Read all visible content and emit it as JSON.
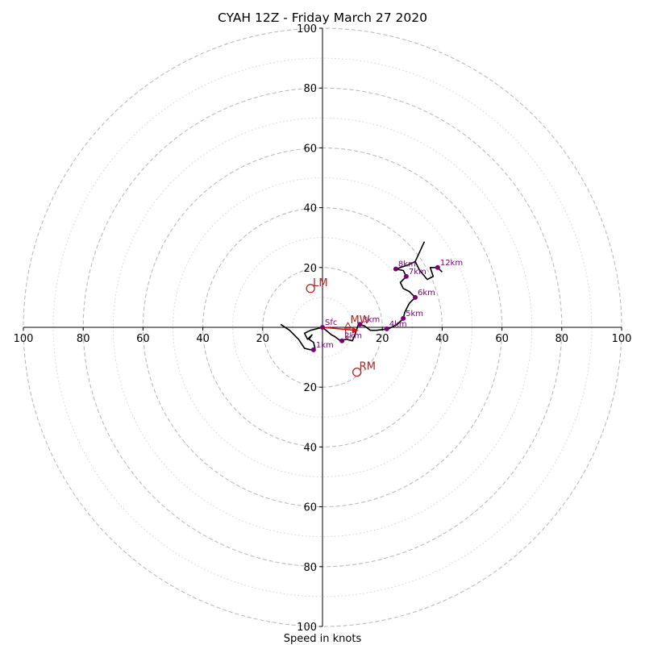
{
  "chart_data": {
    "type": "scatter",
    "title": "CYAH 12Z - Friday March 27 2020",
    "xlabel": "Speed in knots",
    "ylabel": "",
    "xlim": [
      -100,
      100
    ],
    "ylim": [
      -100,
      100
    ],
    "rings_dashed": [
      20,
      40,
      60,
      80,
      100
    ],
    "rings_dotted": [
      10,
      30,
      50,
      70,
      90
    ],
    "ticks": {
      "left": [
        "100",
        "80",
        "60",
        "40",
        "20"
      ],
      "right": [
        "20",
        "40",
        "60",
        "80",
        "100"
      ],
      "top": [
        "100",
        "80",
        "60",
        "40",
        "20"
      ],
      "bottom": [
        "20",
        "40",
        "60",
        "80",
        "100"
      ]
    },
    "hodograph_trace": [
      [
        -14,
        1
      ],
      [
        -11,
        -1
      ],
      [
        -8,
        -4
      ],
      [
        -6,
        -7
      ],
      [
        -4,
        -7.5
      ],
      [
        -2.5,
        -7
      ],
      [
        -3,
        -5
      ],
      [
        -4.5,
        -4
      ],
      [
        -3.5,
        -2.5
      ],
      [
        -5,
        -4
      ],
      [
        -6,
        -2
      ],
      [
        -4,
        -1
      ],
      [
        0,
        0
      ],
      [
        3,
        -2.5
      ],
      [
        4,
        -3
      ],
      [
        6,
        -4.5
      ],
      [
        8,
        -4
      ],
      [
        10,
        -4.5
      ],
      [
        11,
        -2
      ],
      [
        12,
        1
      ],
      [
        14,
        0.5
      ],
      [
        16,
        -1
      ],
      [
        18,
        -1
      ],
      [
        22,
        -0.5
      ],
      [
        25,
        1
      ],
      [
        27,
        3
      ],
      [
        27.5,
        5
      ],
      [
        29,
        8
      ],
      [
        31,
        10
      ],
      [
        29,
        12
      ],
      [
        27,
        13
      ],
      [
        26,
        15
      ],
      [
        28,
        17
      ],
      [
        27,
        19
      ],
      [
        24.5,
        19.5
      ],
      [
        29,
        21
      ],
      [
        31,
        22
      ],
      [
        34,
        28.5
      ],
      [
        31,
        22
      ],
      [
        32.5,
        19
      ],
      [
        35,
        16
      ],
      [
        37,
        17
      ],
      [
        36,
        20
      ],
      [
        38.5,
        20
      ],
      [
        40,
        18.5
      ]
    ],
    "height_markers": [
      {
        "label": "Sfc",
        "x": 0,
        "y": 0
      },
      {
        "label": "1km",
        "x": -3,
        "y": -7.5
      },
      {
        "label": "2km",
        "x": 6.5,
        "y": -4.5
      },
      {
        "label": "3km",
        "x": 12.5,
        "y": 1
      },
      {
        "label": "4km",
        "x": 21.5,
        "y": -0.5
      },
      {
        "label": "5km",
        "x": 27,
        "y": 3
      },
      {
        "label": "6km",
        "x": 31,
        "y": 10
      },
      {
        "label": "7km",
        "x": 28,
        "y": 17
      },
      {
        "label": "8km",
        "x": 24.5,
        "y": 19.5
      },
      {
        "label": "12km",
        "x": 38.5,
        "y": 20
      }
    ],
    "storm_motion": [
      {
        "label": "LM",
        "x": -4,
        "y": 13
      },
      {
        "label": "RM",
        "x": 11.5,
        "y": -15
      },
      {
        "label": "MW",
        "x": 8.5,
        "y": 0.5
      }
    ],
    "shear_vector": {
      "from": [
        0,
        0
      ],
      "to": [
        11,
        -1
      ],
      "label": "L"
    },
    "colors": {
      "trace": "#000000",
      "marker": "#7a007a",
      "marker_label": "#800080",
      "motion": "#b22222",
      "shear": "#dd1111",
      "ring": "#bbbbbb",
      "axis": "#000000"
    }
  }
}
